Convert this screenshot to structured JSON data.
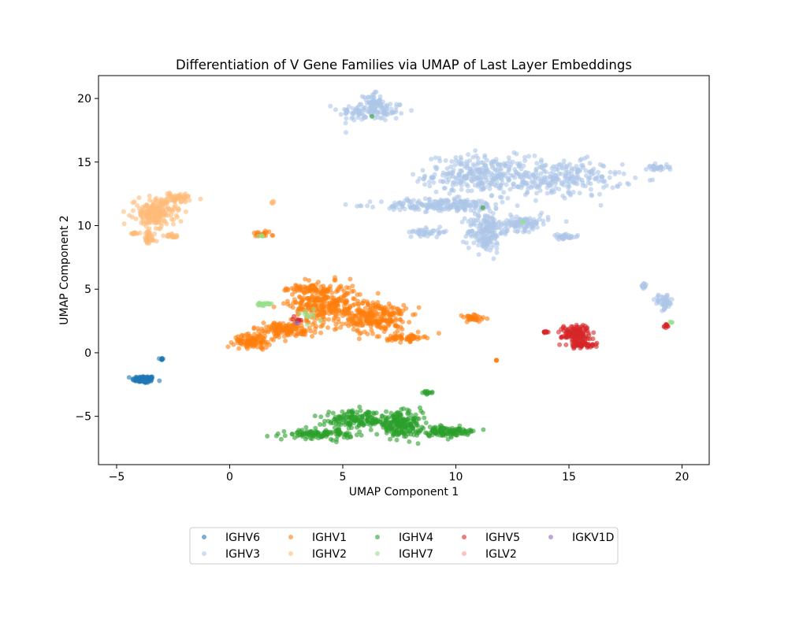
{
  "chart_data": {
    "type": "scatter",
    "title": "Differentiation of V Gene Families via UMAP of Last Layer Embeddings",
    "xlabel": "UMAP Component 1",
    "ylabel": "UMAP Component 2",
    "xlim": [
      -5.8,
      21.2
    ],
    "ylim": [
      -8.8,
      21.8
    ],
    "xticks": [
      -5,
      0,
      5,
      10,
      15,
      20
    ],
    "yticks": [
      -5,
      0,
      5,
      10,
      15,
      20
    ],
    "grid": false,
    "legend_position": "bottom-center",
    "series": [
      {
        "name": "IGHV6",
        "color": "#1f77b4",
        "clusters": [
          {
            "cx": -3.8,
            "cy": -2.1,
            "rx": 0.5,
            "ry": 0.28,
            "n": 90
          },
          {
            "cx": -3.0,
            "cy": -0.5,
            "rx": 0.06,
            "ry": 0.15,
            "n": 8
          }
        ]
      },
      {
        "name": "IGHV3",
        "color": "#aec7e8",
        "clusters": [
          {
            "cx": 6.3,
            "cy": 19.0,
            "rx": 1.5,
            "ry": 0.8,
            "n": 120
          },
          {
            "cx": 6.3,
            "cy": 19.8,
            "rx": 0.4,
            "ry": 0.6,
            "n": 40
          },
          {
            "cx": 11.0,
            "cy": 14.0,
            "rx": 2.3,
            "ry": 1.5,
            "n": 280
          },
          {
            "cx": 14.5,
            "cy": 13.7,
            "rx": 2.8,
            "ry": 1.4,
            "n": 260
          },
          {
            "cx": 11.3,
            "cy": 9.5,
            "rx": 0.8,
            "ry": 1.6,
            "n": 160
          },
          {
            "cx": 9.5,
            "cy": 11.6,
            "rx": 2.8,
            "ry": 0.5,
            "n": 200
          },
          {
            "cx": 12.8,
            "cy": 10.2,
            "rx": 1.3,
            "ry": 0.6,
            "n": 110
          },
          {
            "cx": 8.8,
            "cy": 9.5,
            "rx": 0.9,
            "ry": 0.3,
            "n": 40
          },
          {
            "cx": 14.8,
            "cy": 9.1,
            "rx": 0.6,
            "ry": 0.2,
            "n": 30
          },
          {
            "cx": 18.9,
            "cy": 14.6,
            "rx": 0.5,
            "ry": 0.3,
            "n": 30
          },
          {
            "cx": 18.3,
            "cy": 5.2,
            "rx": 0.2,
            "ry": 0.2,
            "n": 12
          },
          {
            "cx": 19.2,
            "cy": 4.0,
            "rx": 0.4,
            "ry": 0.6,
            "n": 50
          }
        ]
      },
      {
        "name": "IGHV1",
        "color": "#ff7f0e",
        "clusters": [
          {
            "cx": 4.2,
            "cy": 3.8,
            "rx": 1.5,
            "ry": 1.6,
            "n": 300
          },
          {
            "cx": 6.5,
            "cy": 2.8,
            "rx": 1.3,
            "ry": 1.3,
            "n": 240
          },
          {
            "cx": 2.4,
            "cy": 1.8,
            "rx": 1.4,
            "ry": 0.6,
            "n": 140
          },
          {
            "cx": 1.0,
            "cy": 0.9,
            "rx": 0.8,
            "ry": 0.5,
            "n": 100
          },
          {
            "cx": 3.5,
            "cy": 5.0,
            "rx": 1.2,
            "ry": 0.4,
            "n": 60
          },
          {
            "cx": 7.8,
            "cy": 1.2,
            "rx": 0.8,
            "ry": 0.3,
            "n": 60
          },
          {
            "cx": 1.4,
            "cy": 9.3,
            "rx": 0.5,
            "ry": 0.2,
            "n": 24
          },
          {
            "cx": 10.7,
            "cy": 2.7,
            "rx": 0.6,
            "ry": 0.3,
            "n": 40
          },
          {
            "cx": 11.8,
            "cy": -0.6,
            "rx": 0.05,
            "ry": 0.05,
            "n": 4
          }
        ]
      },
      {
        "name": "IGHV2",
        "color": "#ffbb78",
        "clusters": [
          {
            "cx": -3.3,
            "cy": 11.0,
            "rx": 0.9,
            "ry": 1.0,
            "n": 200
          },
          {
            "cx": -2.3,
            "cy": 12.2,
            "rx": 0.9,
            "ry": 0.35,
            "n": 60
          },
          {
            "cx": -3.6,
            "cy": 9.0,
            "rx": 0.3,
            "ry": 0.6,
            "n": 40
          },
          {
            "cx": -4.2,
            "cy": 9.4,
            "rx": 0.2,
            "ry": 0.1,
            "n": 12
          },
          {
            "cx": -2.5,
            "cy": 9.2,
            "rx": 0.4,
            "ry": 0.2,
            "n": 20
          },
          {
            "cx": 1.9,
            "cy": 11.8,
            "rx": 0.1,
            "ry": 0.1,
            "n": 6
          }
        ]
      },
      {
        "name": "IGHV4",
        "color": "#2ca02c",
        "clusters": [
          {
            "cx": 7.5,
            "cy": -5.6,
            "rx": 1.0,
            "ry": 0.9,
            "n": 200
          },
          {
            "cx": 5.5,
            "cy": -5.3,
            "rx": 1.3,
            "ry": 0.7,
            "n": 140
          },
          {
            "cx": 9.5,
            "cy": -6.2,
            "rx": 1.5,
            "ry": 0.35,
            "n": 130
          },
          {
            "cx": 4.0,
            "cy": -6.4,
            "rx": 1.4,
            "ry": 0.35,
            "n": 110
          },
          {
            "cx": 8.7,
            "cy": -3.1,
            "rx": 0.3,
            "ry": 0.15,
            "n": 12
          },
          {
            "cx": 6.3,
            "cy": 18.6,
            "rx": 0.02,
            "ry": 0.02,
            "n": 1
          },
          {
            "cx": 11.2,
            "cy": 11.4,
            "rx": 0.02,
            "ry": 0.02,
            "n": 1
          }
        ]
      },
      {
        "name": "IGHV7",
        "color": "#98df8a",
        "clusters": [
          {
            "cx": 1.5,
            "cy": 3.8,
            "rx": 0.4,
            "ry": 0.15,
            "n": 25
          },
          {
            "cx": 3.5,
            "cy": 3.0,
            "rx": 0.4,
            "ry": 0.5,
            "n": 12
          },
          {
            "cx": 1.4,
            "cy": 9.2,
            "rx": 0.1,
            "ry": 0.1,
            "n": 4
          },
          {
            "cx": 13.0,
            "cy": 10.3,
            "rx": 0.05,
            "ry": 0.05,
            "n": 2
          },
          {
            "cx": 19.5,
            "cy": 2.4,
            "rx": 0.1,
            "ry": 0.1,
            "n": 4
          }
        ]
      },
      {
        "name": "IGHV5",
        "color": "#d62728",
        "clusters": [
          {
            "cx": 15.3,
            "cy": 1.5,
            "rx": 0.6,
            "ry": 0.7,
            "n": 150
          },
          {
            "cx": 15.6,
            "cy": 0.6,
            "rx": 0.6,
            "ry": 0.2,
            "n": 50
          },
          {
            "cx": 14.0,
            "cy": 1.6,
            "rx": 0.2,
            "ry": 0.1,
            "n": 10
          },
          {
            "cx": 19.3,
            "cy": 2.1,
            "rx": 0.1,
            "ry": 0.15,
            "n": 10
          },
          {
            "cx": 3.0,
            "cy": 2.6,
            "rx": 0.3,
            "ry": 0.3,
            "n": 8
          }
        ]
      },
      {
        "name": "IGLV2",
        "color": "#ff9896",
        "clusters": []
      },
      {
        "name": "IGKV1D",
        "color": "#9467bd",
        "clusters": [
          {
            "cx": 3.0,
            "cy": 2.3,
            "rx": 0.1,
            "ry": 0.1,
            "n": 2
          }
        ]
      }
    ]
  }
}
